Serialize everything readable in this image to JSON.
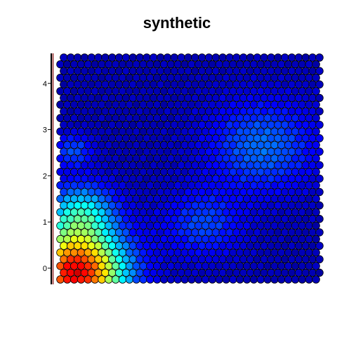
{
  "chart_data": {
    "type": "heatmap",
    "title": "synthetic",
    "xlabel": "",
    "ylabel": "",
    "layout": "hexagonal",
    "grid_cols": 38,
    "grid_rows": 34,
    "ylim": [
      -0.35,
      4.65
    ],
    "yticks": [
      0,
      1,
      2,
      3,
      4
    ],
    "ytick_labels": [
      "0",
      "1",
      "2",
      "3",
      "4"
    ],
    "colormap": "jet",
    "value_range": [
      0,
      1
    ],
    "background_level": 0.05,
    "hotspots": [
      {
        "name": "bottom-left-peak",
        "cx_frac": 0.06,
        "cy_frac": 0.03,
        "radius_frac": 0.2,
        "peak": 0.85
      },
      {
        "name": "left-cyan-band",
        "cx_frac": 0.08,
        "cy_frac": 0.3,
        "radius_frac": 0.14,
        "peak": 0.3
      },
      {
        "name": "right-upper-blob",
        "cx_frac": 0.78,
        "cy_frac": 0.6,
        "radius_frac": 0.22,
        "peak": 0.18
      },
      {
        "name": "center-blob",
        "cx_frac": 0.55,
        "cy_frac": 0.25,
        "radius_frac": 0.16,
        "peak": 0.14
      },
      {
        "name": "left-mid-spot",
        "cx_frac": 0.05,
        "cy_frac": 0.58,
        "radius_frac": 0.08,
        "peak": 0.15
      }
    ]
  }
}
